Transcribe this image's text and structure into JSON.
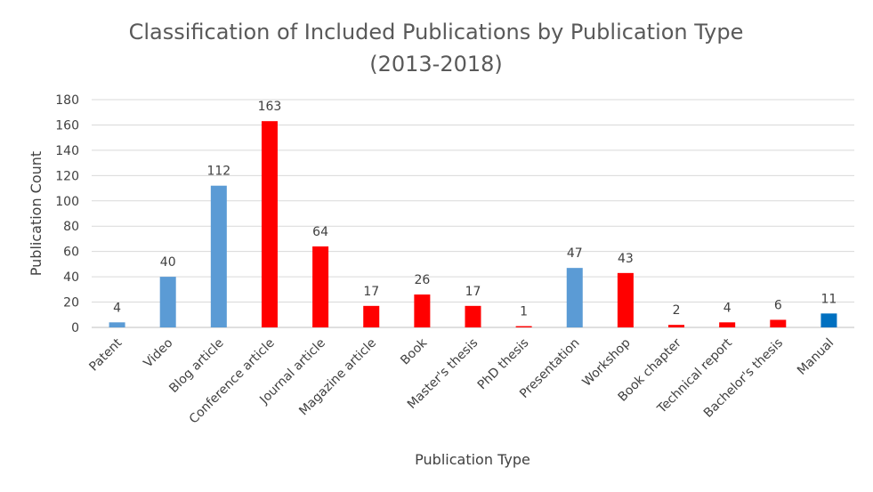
{
  "chart_data": {
    "type": "bar",
    "title": "Classification of Included Publications by Publication Type",
    "subtitle": "(2013-2018)",
    "xlabel": "Publication Type",
    "ylabel": "Publication Count",
    "ylim": [
      0,
      180
    ],
    "ytick_step": 20,
    "grid": true,
    "categories": [
      "Patent",
      "Video",
      "Blog article",
      "Conference article",
      "Journal article",
      "Magazine article",
      "Book",
      "Master's thesis",
      "PhD thesis",
      "Presentation",
      "Workshop",
      "Book chapter",
      "Technical report",
      "Bachelor's thesis",
      "Manual"
    ],
    "values": [
      4,
      40,
      112,
      163,
      64,
      17,
      26,
      17,
      1,
      47,
      43,
      2,
      4,
      6,
      11
    ],
    "bar_colors": [
      "#5b9bd5",
      "#5b9bd5",
      "#5b9bd5",
      "#ff0000",
      "#ff0000",
      "#ff0000",
      "#ff0000",
      "#ff0000",
      "#ff0000",
      "#5b9bd5",
      "#ff0000",
      "#ff0000",
      "#ff0000",
      "#ff0000",
      "#0070c0"
    ]
  }
}
